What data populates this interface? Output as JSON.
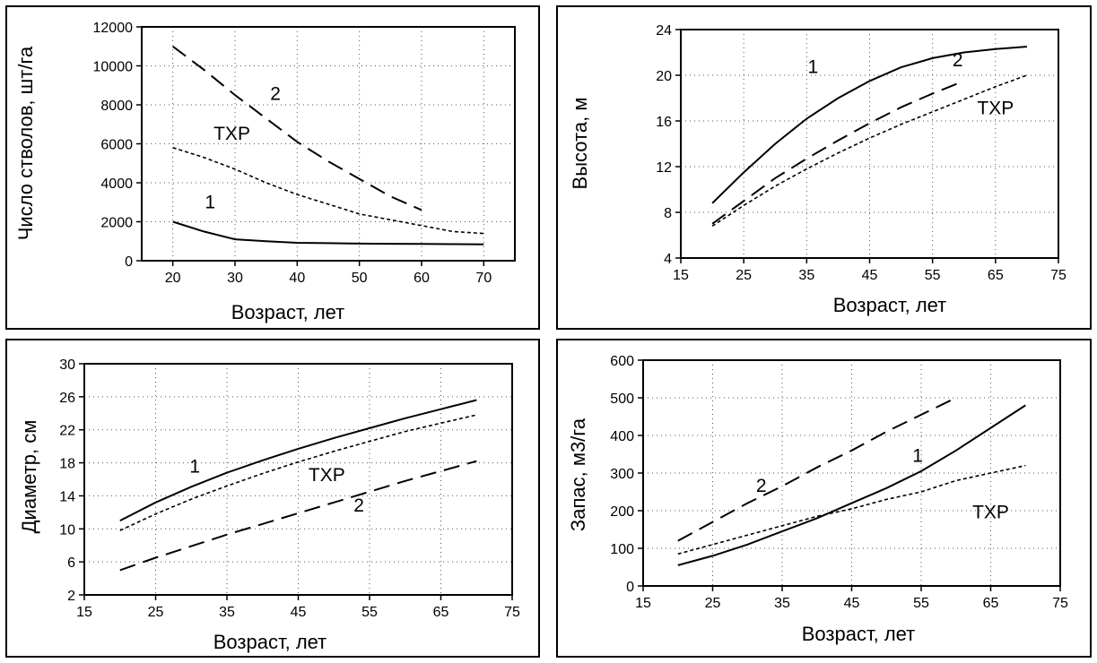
{
  "chart_data": [
    {
      "type": "line",
      "xlabel": "Возраст, лет",
      "ylabel": "Число стволов, шт/га",
      "xlim": [
        15,
        75
      ],
      "ylim": [
        0,
        12000
      ],
      "xticks": [
        20,
        30,
        40,
        50,
        60,
        70
      ],
      "yticks": [
        0,
        2000,
        4000,
        6000,
        8000,
        10000,
        12000
      ],
      "grid": true,
      "series": [
        {
          "name": "1",
          "style": "solid",
          "x": [
            20,
            25,
            30,
            35,
            40,
            45,
            50,
            55,
            60,
            65,
            70
          ],
          "y": [
            2000,
            1500,
            1100,
            1000,
            920,
            900,
            880,
            870,
            860,
            850,
            840
          ]
        },
        {
          "name": "2",
          "style": "longdash",
          "x": [
            20,
            25,
            30,
            35,
            40,
            45,
            50,
            55,
            60
          ],
          "y": [
            11000,
            9800,
            8500,
            7300,
            6100,
            5100,
            4200,
            3300,
            2600
          ]
        },
        {
          "name": "ТХР",
          "style": "dotted",
          "x": [
            20,
            25,
            30,
            35,
            40,
            45,
            50,
            55,
            60,
            65,
            70
          ],
          "y": [
            5800,
            5300,
            4700,
            4000,
            3400,
            2900,
            2400,
            2100,
            1800,
            1500,
            1400
          ]
        }
      ],
      "annotations": [
        {
          "text": "2",
          "x": 36.5,
          "y": 8250
        },
        {
          "text": "ТХР",
          "x": 29.5,
          "y": 6200
        },
        {
          "text": "1",
          "x": 26,
          "y": 2700
        }
      ]
    },
    {
      "type": "line",
      "xlabel": "Возраст, лет",
      "ylabel": "Высота, м",
      "xlim": [
        15,
        75
      ],
      "ylim": [
        4,
        24
      ],
      "xticks": [
        15,
        25,
        35,
        45,
        55,
        65,
        75
      ],
      "yticks": [
        4,
        8,
        12,
        16,
        20,
        24
      ],
      "grid": true,
      "series": [
        {
          "name": "1",
          "style": "solid",
          "x": [
            20,
            25,
            30,
            35,
            40,
            45,
            50,
            55,
            60,
            65,
            70
          ],
          "y": [
            8.8,
            11.5,
            14.0,
            16.2,
            18.0,
            19.5,
            20.7,
            21.5,
            22.0,
            22.3,
            22.5
          ]
        },
        {
          "name": "2",
          "style": "longdash",
          "x": [
            20,
            25,
            30,
            35,
            40,
            45,
            50,
            55,
            60
          ],
          "y": [
            7.0,
            9.0,
            11.0,
            12.7,
            14.3,
            15.8,
            17.2,
            18.4,
            19.5
          ]
        },
        {
          "name": "ТХР",
          "style": "dotted",
          "x": [
            20,
            25,
            30,
            35,
            40,
            45,
            50,
            55,
            60,
            65,
            70
          ],
          "y": [
            6.8,
            8.6,
            10.3,
            11.8,
            13.2,
            14.5,
            15.7,
            16.8,
            17.9,
            19.0,
            20.0
          ]
        }
      ],
      "annotations": [
        {
          "text": "1",
          "x": 36,
          "y": 20.2
        },
        {
          "text": "2",
          "x": 59,
          "y": 20.8
        },
        {
          "text": "ТХР",
          "x": 65,
          "y": 16.6
        }
      ]
    },
    {
      "type": "line",
      "xlabel": "Возраст, лет",
      "ylabel": "Диаметр, см",
      "xlim": [
        15,
        75
      ],
      "ylim": [
        2,
        30
      ],
      "xticks": [
        15,
        25,
        35,
        45,
        55,
        65,
        75
      ],
      "yticks": [
        2,
        6,
        10,
        14,
        18,
        22,
        26,
        30
      ],
      "grid": true,
      "series": [
        {
          "name": "1",
          "style": "solid",
          "x": [
            20,
            25,
            30,
            35,
            40,
            45,
            50,
            55,
            60,
            65,
            70
          ],
          "y": [
            11.0,
            13.2,
            15.1,
            16.8,
            18.3,
            19.7,
            21.0,
            22.2,
            23.4,
            24.5,
            25.6
          ]
        },
        {
          "name": "ТХР",
          "style": "dotted",
          "x": [
            20,
            25,
            30,
            35,
            40,
            45,
            50,
            55,
            60,
            65,
            70
          ],
          "y": [
            9.8,
            11.8,
            13.6,
            15.2,
            16.7,
            18.1,
            19.4,
            20.6,
            21.8,
            22.8,
            23.8
          ]
        },
        {
          "name": "2",
          "style": "longdash",
          "x": [
            20,
            25,
            30,
            35,
            40,
            45,
            50,
            55,
            60,
            65,
            70
          ],
          "y": [
            5.0,
            6.5,
            7.9,
            9.3,
            10.6,
            11.9,
            13.2,
            14.5,
            15.8,
            17.0,
            18.2
          ]
        }
      ],
      "annotations": [
        {
          "text": "1",
          "x": 30.5,
          "y": 16.8
        },
        {
          "text": "ТХР",
          "x": 49,
          "y": 15.8
        },
        {
          "text": "2",
          "x": 53.5,
          "y": 12.1
        }
      ]
    },
    {
      "type": "line",
      "xlabel": "Возраст, лет",
      "ylabel": "Запас, м3/га",
      "xlim": [
        15,
        75
      ],
      "ylim": [
        0,
        600
      ],
      "xticks": [
        15,
        25,
        35,
        45,
        55,
        65,
        75
      ],
      "yticks": [
        0,
        100,
        200,
        300,
        400,
        500,
        600
      ],
      "grid": true,
      "series": [
        {
          "name": "1",
          "style": "solid",
          "x": [
            20,
            25,
            30,
            35,
            40,
            45,
            50,
            55,
            60,
            65,
            70
          ],
          "y": [
            55,
            80,
            110,
            145,
            180,
            220,
            260,
            305,
            360,
            420,
            480
          ]
        },
        {
          "name": "2",
          "style": "longdash",
          "x": [
            20,
            25,
            30,
            35,
            40,
            45,
            50,
            55,
            60
          ],
          "y": [
            120,
            170,
            220,
            265,
            315,
            360,
            410,
            455,
            500
          ]
        },
        {
          "name": "ТХР",
          "style": "dotted",
          "x": [
            20,
            25,
            30,
            35,
            40,
            45,
            50,
            55,
            60,
            65,
            70
          ],
          "y": [
            85,
            110,
            135,
            160,
            185,
            205,
            230,
            250,
            280,
            300,
            320
          ]
        }
      ],
      "annotations": [
        {
          "text": "2",
          "x": 32,
          "y": 250
        },
        {
          "text": "1",
          "x": 54.5,
          "y": 330
        },
        {
          "text": "ТХР",
          "x": 65,
          "y": 180
        }
      ]
    }
  ]
}
